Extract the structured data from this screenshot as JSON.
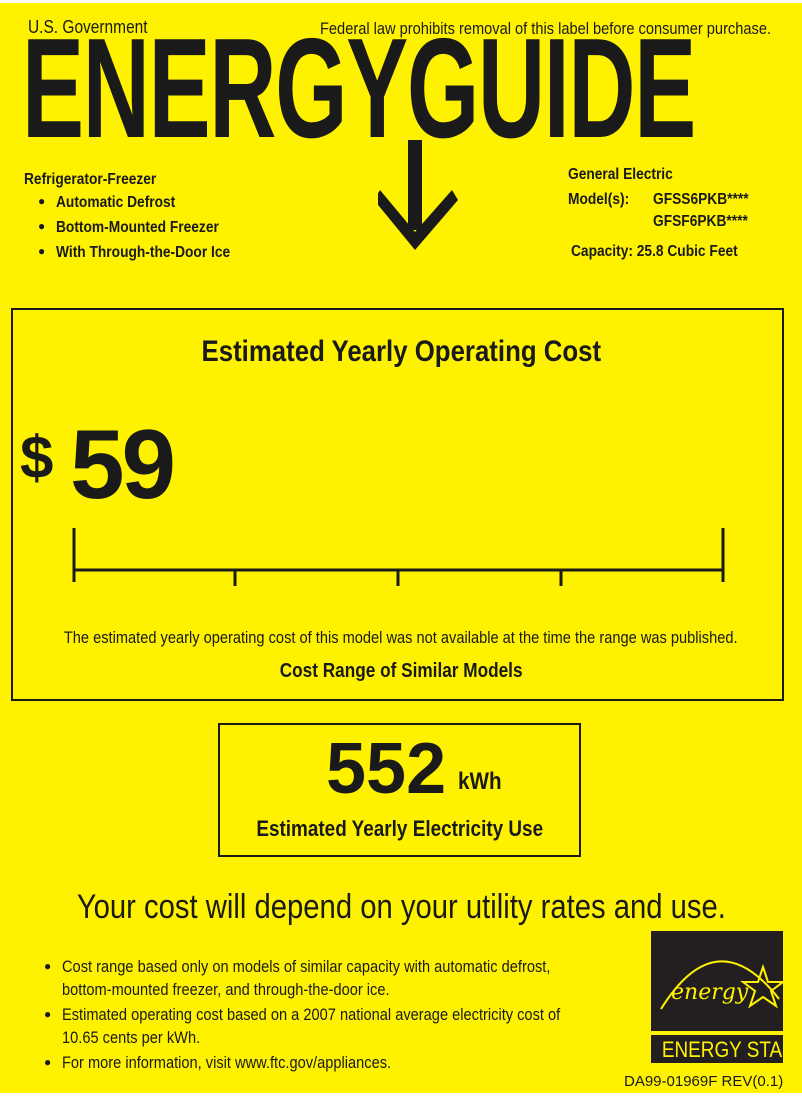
{
  "header": {
    "government": "U.S. Government",
    "notice": "Federal law prohibits removal of this label before consumer purchase.",
    "title": "ENERGYGUIDE"
  },
  "product": {
    "type": "Refrigerator-Freezer",
    "features": [
      "Automatic Defrost",
      "Bottom-Mounted Freezer",
      "With Through-the-Door Ice"
    ]
  },
  "manufacturer": {
    "name": "General Electric",
    "models_label": "Model(s):",
    "models": [
      "GFSS6PKB****",
      "GFSF6PKB****"
    ],
    "capacity": "Capacity: 25.8 Cubic Feet"
  },
  "cost": {
    "heading": "Estimated Yearly Operating Cost",
    "currency": "$",
    "value": "59",
    "note": "The estimated yearly operating cost of this model was not available at the time the range was published.",
    "range_label": "Cost Range of Similar Models"
  },
  "electricity": {
    "value": "552",
    "unit": "kWh",
    "label": "Estimated Yearly Electricity Use"
  },
  "footer": {
    "headline": "Your cost will depend on your utility rates and use.",
    "bullets": [
      [
        "Cost range based only on models of similar capacity with automatic defrost,",
        "bottom-mounted freezer, and through-the-door ice."
      ],
      [
        "Estimated operating cost based on a 2007 national average electricity cost of",
        "10.65 cents per kWh."
      ],
      [
        "For more information, visit www.ftc.gov/appliances."
      ]
    ],
    "energy_star_script": "energy",
    "energy_star_label": "ENERGY STAR",
    "code": "DA99-01969F REV(0.1)"
  },
  "colors": {
    "background": "#fff200",
    "ink": "#1a1a1a"
  }
}
